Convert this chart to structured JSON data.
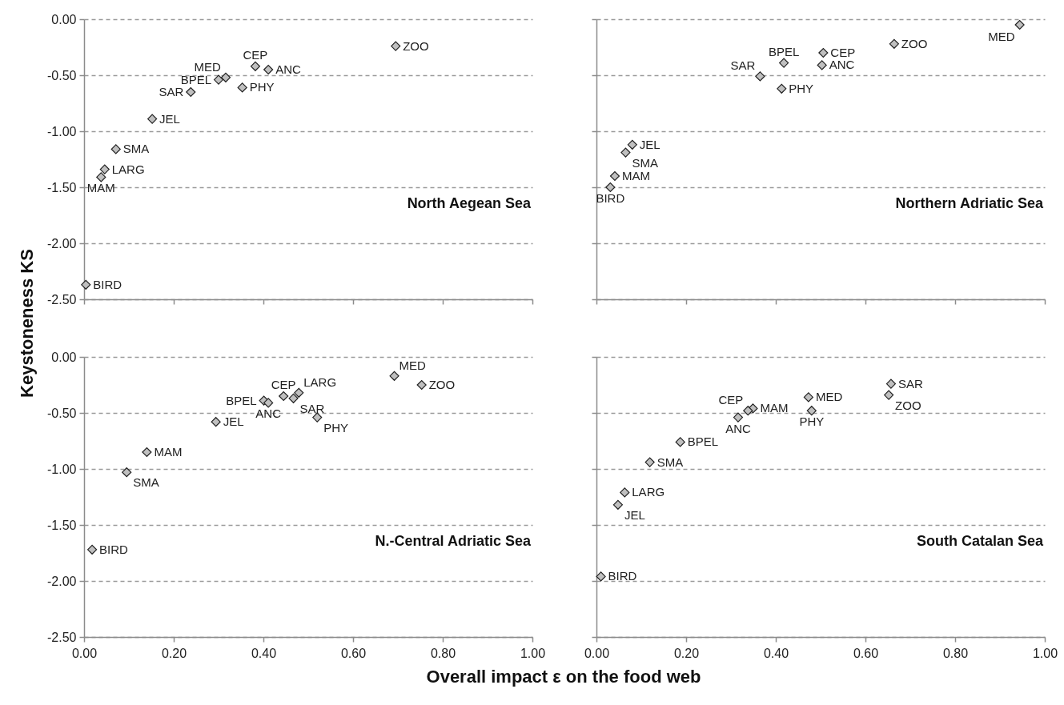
{
  "chart_data": [
    {
      "type": "scatter",
      "title": "North Aegean Sea",
      "ylabel": "Keystoneness KS",
      "color": "#c0c0c0",
      "marker": "diamond",
      "grid": "y",
      "line_style": "dashed",
      "tick_labels": "y",
      "x": [
        0.695,
        0.382,
        0.411,
        0.316,
        0.3,
        0.353,
        0.238,
        0.152,
        0.071,
        0.046,
        0.038,
        0.004
      ],
      "values": [
        -0.24,
        -0.42,
        -0.45,
        -0.52,
        -0.54,
        -0.61,
        -0.65,
        -0.89,
        -1.16,
        -1.34,
        -1.41,
        -2.37
      ],
      "xlim": [
        0,
        1
      ],
      "xticks": [
        0,
        0.2,
        0.4,
        0.6,
        0.8,
        1
      ],
      "ylim": [
        -2.5,
        0
      ],
      "yticks": [
        {
          "value": -2.5,
          "label": "-2.50"
        },
        {
          "value": -2,
          "label": "-2.00"
        },
        {
          "value": -1.5,
          "label": "-1.50"
        },
        {
          "value": -1,
          "label": "-1.00"
        },
        {
          "value": -0.5,
          "label": "-0.50"
        },
        {
          "value": 0,
          "label": "0.00"
        }
      ],
      "annotations": [
        {
          "text": "ZOO",
          "x": 0.695,
          "y": -0.24
        },
        {
          "text": "CEP",
          "x": 0.382,
          "y": -0.42
        },
        {
          "text": "ANC",
          "x": 0.411,
          "y": -0.45
        },
        {
          "text": "MED",
          "x": 0.316,
          "y": -0.52
        },
        {
          "text": "BPEL",
          "x": 0.3,
          "y": -0.54
        },
        {
          "text": "PHY",
          "x": 0.353,
          "y": -0.61
        },
        {
          "text": "SAR",
          "x": 0.238,
          "y": -0.65
        },
        {
          "text": "JEL",
          "x": 0.152,
          "y": -0.89
        },
        {
          "text": "SMA",
          "x": 0.071,
          "y": -1.16
        },
        {
          "text": "LARG",
          "x": 0.046,
          "y": -1.34
        },
        {
          "text": "MAM",
          "x": 0.038,
          "y": -1.41
        },
        {
          "text": "BIRD",
          "x": 0.004,
          "y": -2.37
        }
      ]
    },
    {
      "type": "scatter",
      "title": "Northern Adriatic Sea",
      "color": "#c0c0c0",
      "marker": "diamond",
      "grid": "y",
      "line_style": "dashed",
      "tick_labels": false,
      "x": [
        0.944,
        0.664,
        0.506,
        0.503,
        0.418,
        0.365,
        0.413,
        0.08,
        0.065,
        0.041,
        0.031
      ],
      "values": [
        -0.05,
        -0.22,
        -0.3,
        -0.41,
        -0.39,
        -0.51,
        -0.62,
        -1.12,
        -1.19,
        -1.4,
        -1.5
      ],
      "xlim": [
        0,
        1
      ],
      "xticks": [
        0,
        0.2,
        0.4,
        0.6,
        0.8,
        1
      ],
      "ylim": [
        -2.5,
        0
      ],
      "yticks": [
        -2.5,
        -2,
        -1.5,
        -1,
        -0.5,
        0
      ],
      "annotations": [
        {
          "text": "MED",
          "x": 0.944,
          "y": -0.05
        },
        {
          "text": "ZOO",
          "x": 0.664,
          "y": -0.22
        },
        {
          "text": "CEP",
          "x": 0.506,
          "y": -0.3
        },
        {
          "text": "ANC",
          "x": 0.503,
          "y": -0.41
        },
        {
          "text": "BPEL",
          "x": 0.418,
          "y": -0.39
        },
        {
          "text": "SAR",
          "x": 0.365,
          "y": -0.51
        },
        {
          "text": "PHY",
          "x": 0.413,
          "y": -0.62
        },
        {
          "text": "JEL",
          "x": 0.08,
          "y": -1.12
        },
        {
          "text": "SMA",
          "x": 0.065,
          "y": -1.19
        },
        {
          "text": "MAM",
          "x": 0.041,
          "y": -1.4
        },
        {
          "text": "BIRD",
          "x": 0.031,
          "y": -1.5
        }
      ]
    },
    {
      "type": "scatter",
      "title": "N.-Central Adriatic Sea",
      "xlabel": "Overall impact ε on the food web",
      "color": "#c0c0c0",
      "marker": "diamond",
      "grid": "y",
      "line_style": "dashed",
      "x": [
        0.692,
        0.753,
        0.479,
        0.445,
        0.467,
        0.401,
        0.411,
        0.52,
        0.294,
        0.14,
        0.095,
        0.018
      ],
      "values": [
        -0.17,
        -0.25,
        -0.32,
        -0.35,
        -0.37,
        -0.39,
        -0.41,
        -0.54,
        -0.58,
        -0.85,
        -1.03,
        -1.72
      ],
      "xlim": [
        0,
        1
      ],
      "xticks": [
        {
          "value": 0,
          "label": "0.00"
        },
        {
          "value": 0.2,
          "label": "0.20"
        },
        {
          "value": 0.4,
          "label": "0.40"
        },
        {
          "value": 0.6,
          "label": "0.60"
        },
        {
          "value": 0.8,
          "label": "0.80"
        },
        {
          "value": 1,
          "label": "1.00"
        }
      ],
      "ylim": [
        -2.5,
        0
      ],
      "yticks": [
        {
          "value": -2.5,
          "label": "-2.50"
        },
        {
          "value": -2,
          "label": "-2.00"
        },
        {
          "value": -1.5,
          "label": "-1.50"
        },
        {
          "value": -1,
          "label": "-1.00"
        },
        {
          "value": -0.5,
          "label": "-0.50"
        },
        {
          "value": 0,
          "label": "0.00"
        }
      ],
      "annotations": [
        {
          "text": "MED",
          "x": 0.692,
          "y": -0.17
        },
        {
          "text": "ZOO",
          "x": 0.753,
          "y": -0.25
        },
        {
          "text": "LARG",
          "x": 0.479,
          "y": -0.32
        },
        {
          "text": "CEP",
          "x": 0.445,
          "y": -0.35
        },
        {
          "text": "SAR",
          "x": 0.467,
          "y": -0.37
        },
        {
          "text": "BPEL",
          "x": 0.401,
          "y": -0.39
        },
        {
          "text": "ANC",
          "x": 0.411,
          "y": -0.41
        },
        {
          "text": "PHY",
          "x": 0.52,
          "y": -0.54
        },
        {
          "text": "JEL",
          "x": 0.294,
          "y": -0.58
        },
        {
          "text": "MAM",
          "x": 0.14,
          "y": -0.85
        },
        {
          "text": "SMA",
          "x": 0.095,
          "y": -1.03
        },
        {
          "text": "BIRD",
          "x": 0.018,
          "y": -1.72
        }
      ]
    },
    {
      "type": "scatter",
      "title": "South Catalan Sea",
      "color": "#c0c0c0",
      "marker": "diamond",
      "grid": "y",
      "line_style": "dashed",
      "tick_labels": "x",
      "x": [
        0.657,
        0.652,
        0.473,
        0.48,
        0.349,
        0.338,
        0.316,
        0.187,
        0.119,
        0.063,
        0.048,
        0.01
      ],
      "values": [
        -0.24,
        -0.34,
        -0.36,
        -0.48,
        -0.46,
        -0.48,
        -0.54,
        -0.76,
        -0.94,
        -1.21,
        -1.32,
        -1.96
      ],
      "xlim": [
        0,
        1
      ],
      "xticks": [
        {
          "value": 0,
          "label": "0.00"
        },
        {
          "value": 0.2,
          "label": "0.20"
        },
        {
          "value": 0.4,
          "label": "0.40"
        },
        {
          "value": 0.6,
          "label": "0.60"
        },
        {
          "value": 0.8,
          "label": "0.80"
        },
        {
          "value": 1,
          "label": "1.00"
        }
      ],
      "ylim": [
        -2.5,
        0
      ],
      "yticks": [
        -2.5,
        -2,
        -1.5,
        -1,
        -0.5,
        0
      ],
      "annotations": [
        {
          "text": "SAR",
          "x": 0.657,
          "y": -0.24
        },
        {
          "text": "ZOO",
          "x": 0.652,
          "y": -0.34
        },
        {
          "text": "MED",
          "x": 0.473,
          "y": -0.36
        },
        {
          "text": "PHY",
          "x": 0.48,
          "y": -0.48
        },
        {
          "text": "MAM",
          "x": 0.349,
          "y": -0.46
        },
        {
          "text": "CEP",
          "x": 0.338,
          "y": -0.48
        },
        {
          "text": "ANC",
          "x": 0.316,
          "y": -0.54
        },
        {
          "text": "BPEL",
          "x": 0.187,
          "y": -0.76
        },
        {
          "text": "SMA",
          "x": 0.119,
          "y": -0.94
        },
        {
          "text": "LARG",
          "x": 0.063,
          "y": -1.21
        },
        {
          "text": "JEL",
          "x": 0.048,
          "y": -1.32
        },
        {
          "text": "BIRD",
          "x": 0.01,
          "y": -1.96
        }
      ]
    }
  ]
}
